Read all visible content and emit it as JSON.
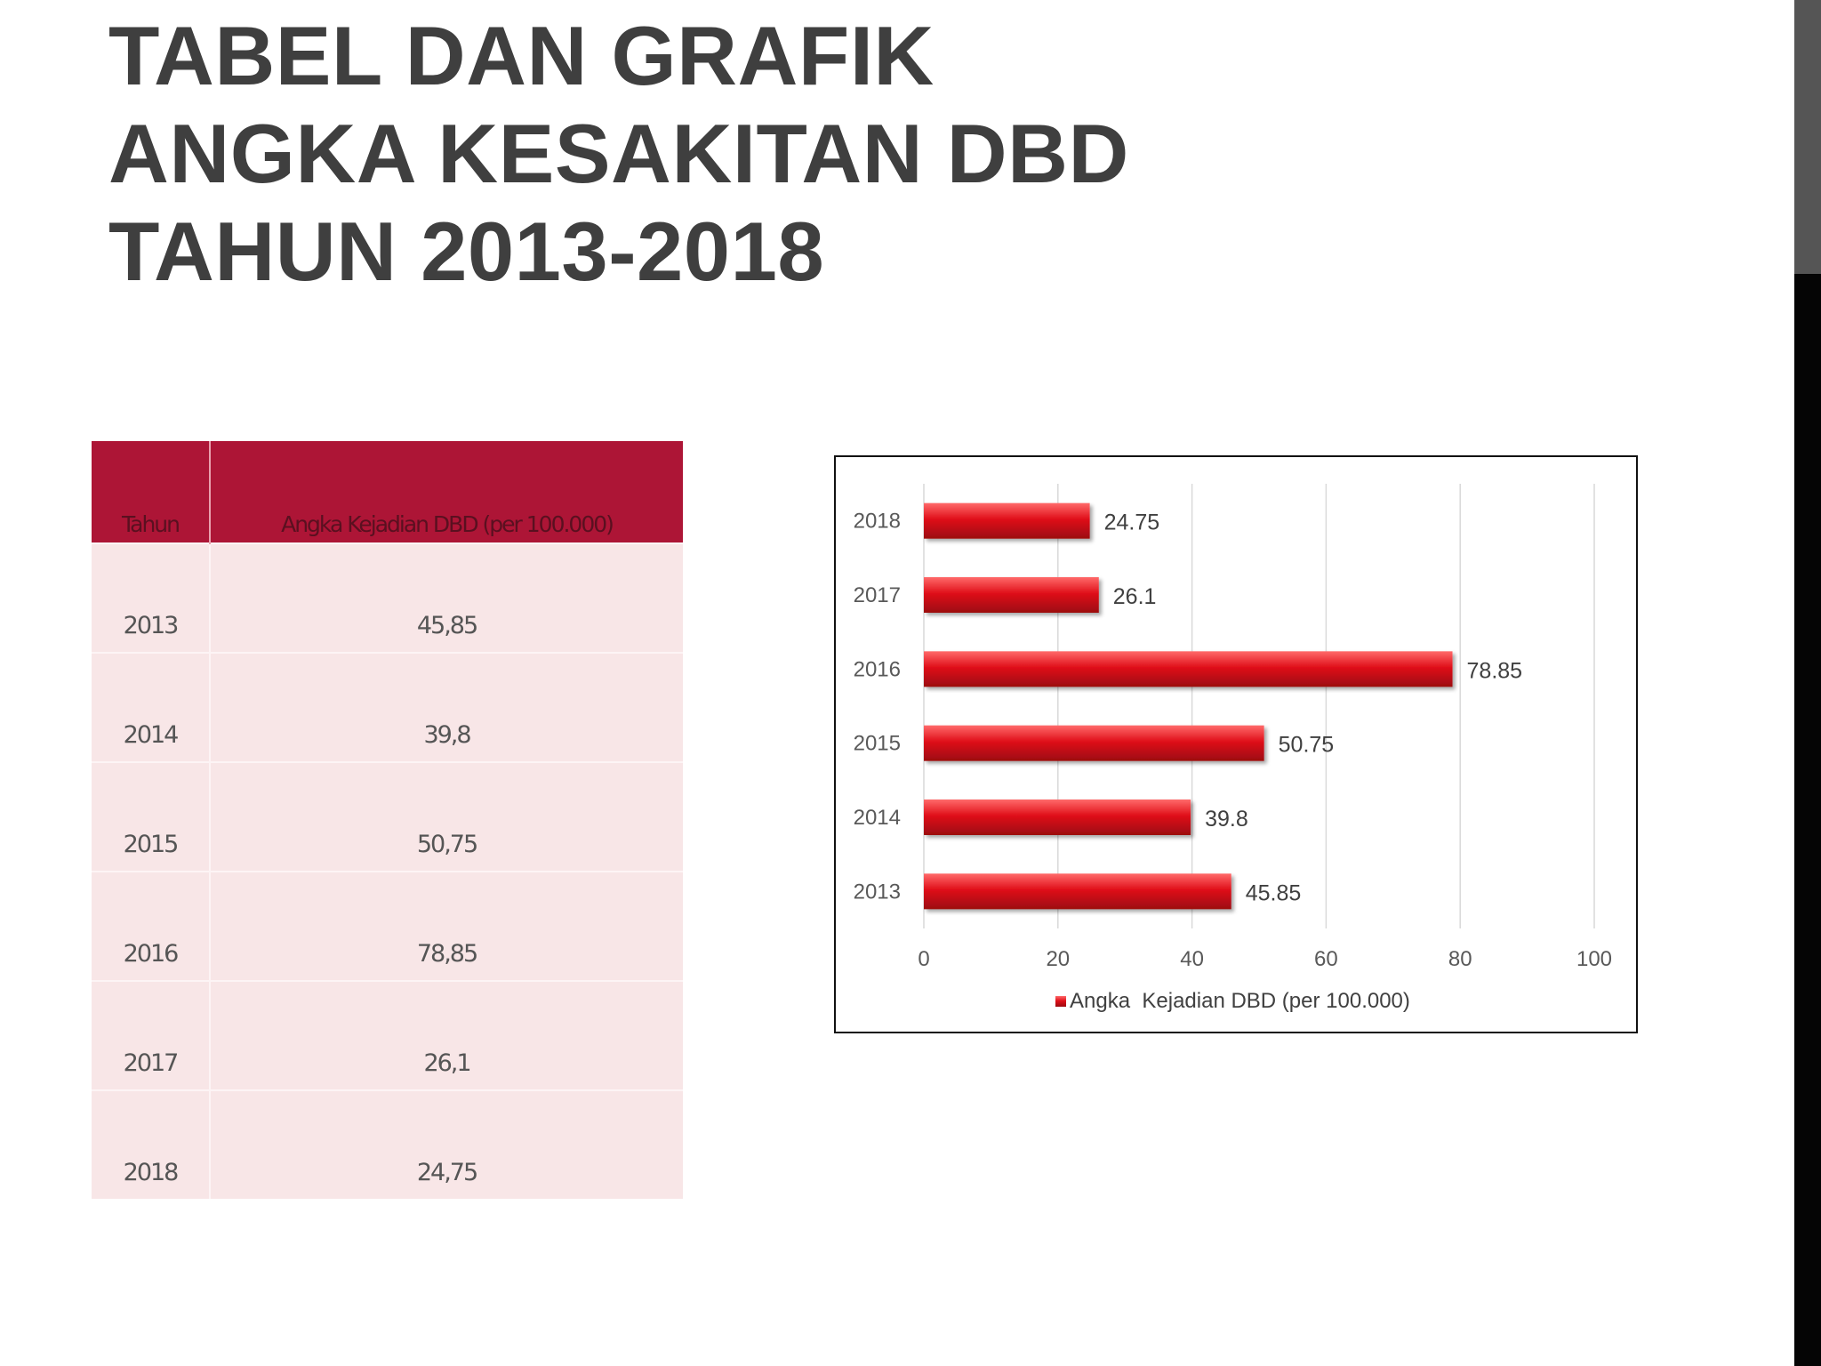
{
  "slide": {
    "title_lines": [
      "TABEL DAN GRAFIK",
      "ANGKA KESAKITAN DBD",
      "TAHUN 2013-2018"
    ]
  },
  "table": {
    "headers": [
      "Tahun",
      "Angka  Kejadian DBD (per 100.000)"
    ],
    "rows": [
      [
        "2013",
        "45,85"
      ],
      [
        "2014",
        "39,8"
      ],
      [
        "2015",
        "50,75"
      ],
      [
        "2016",
        "78,85"
      ],
      [
        "2017",
        "26,1"
      ],
      [
        "2018",
        "24,75"
      ]
    ]
  },
  "chart_data": {
    "type": "bar",
    "orientation": "horizontal",
    "categories": [
      "2013",
      "2014",
      "2015",
      "2016",
      "2017",
      "2018"
    ],
    "series": [
      {
        "name": "Angka  Kejadian DBD (per 100.000)",
        "values": [
          45.85,
          39.8,
          50.75,
          78.85,
          26.1,
          24.75
        ]
      }
    ],
    "data_labels": [
      "45.85",
      "39.8",
      "50.75",
      "78.85",
      "26.1",
      "24.75"
    ],
    "xlim": [
      0,
      100
    ],
    "x_ticks": [
      0,
      20,
      40,
      60,
      80,
      100
    ],
    "grid": "vertical",
    "legend_position": "bottom",
    "bar_color": "#e0101a",
    "title": "",
    "xlabel": "",
    "ylabel": ""
  }
}
